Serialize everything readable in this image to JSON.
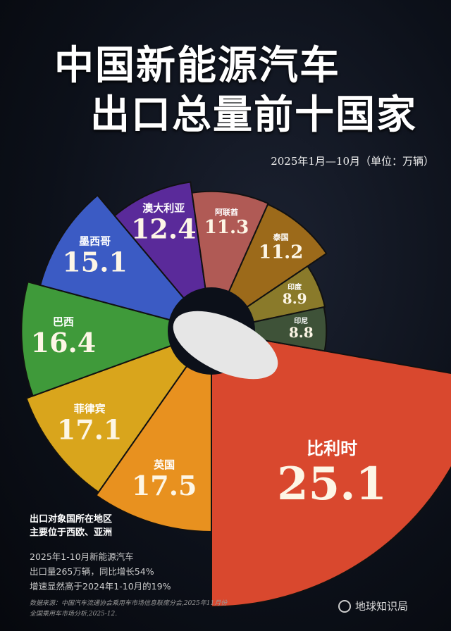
{
  "title_line1": "中国新能源汽车",
  "title_line2": "出口总量前十国家",
  "subtitle": "2025年1月—10月（单位：万辆）",
  "chart_data": {
    "type": "polar-area",
    "title": "中国新能源汽车出口总量前十国家",
    "unit": "万辆",
    "categories": [
      "比利时",
      "英国",
      "菲律宾",
      "巴西",
      "墨西哥",
      "澳大利亚",
      "阿联酋",
      "泰国",
      "印度",
      "印尼"
    ],
    "values": [
      25.1,
      17.5,
      17.1,
      16.4,
      15.1,
      12.4,
      11.3,
      11.2,
      8.9,
      8.8
    ],
    "labels": [
      "25.1",
      "17.5",
      "17.1",
      "16.4",
      "15.1",
      "12.4",
      "11.3",
      "11.2",
      "8.9",
      "8.8"
    ],
    "colors": [
      "#d9482e",
      "#e8911f",
      "#d9a51c",
      "#3f9a3a",
      "#3b5bc4",
      "#5a2a9a",
      "#b05a55",
      "#9c6a1a",
      "#8a7a2a",
      "#3e5238"
    ]
  },
  "notes": {
    "heading1": "出口对象国所在地区",
    "heading2": "主要位于西欧、亚洲",
    "lines": [
      "2025年1-10月新能源汽车",
      "出口量265万辆，同比增长54%",
      "增速显然高于2024年1-10月的19%"
    ]
  },
  "source": {
    "line1": "数据来源：中国汽车流通协会乘用车市场信息联席分会,2025年11月份",
    "line2": "全国乘用车市场分析,2025-12."
  },
  "brand": "地球知识局"
}
